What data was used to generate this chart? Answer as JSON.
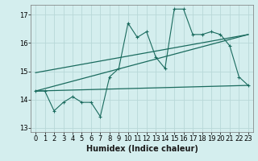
{
  "title": "",
  "xlabel": "Humidex (Indice chaleur)",
  "bg_color": "#d4eeee",
  "grid_color": "#b8d8d8",
  "line_color": "#1a6b5e",
  "xlim": [
    -0.5,
    23.5
  ],
  "ylim": [
    12.85,
    17.35
  ],
  "yticks": [
    13,
    14,
    15,
    16,
    17
  ],
  "xticks": [
    0,
    1,
    2,
    3,
    4,
    5,
    6,
    7,
    8,
    9,
    10,
    11,
    12,
    13,
    14,
    15,
    16,
    17,
    18,
    19,
    20,
    21,
    22,
    23
  ],
  "main_x": [
    0,
    1,
    2,
    3,
    4,
    5,
    6,
    7,
    8,
    9,
    10,
    11,
    12,
    13,
    14,
    15,
    16,
    17,
    18,
    19,
    20,
    21,
    22,
    23
  ],
  "main_y": [
    14.3,
    14.3,
    13.6,
    13.9,
    14.1,
    13.9,
    13.9,
    13.4,
    14.8,
    15.1,
    16.7,
    16.2,
    16.4,
    15.5,
    15.1,
    17.2,
    17.2,
    16.3,
    16.3,
    16.4,
    16.3,
    15.9,
    14.8,
    14.5
  ],
  "line1_x": [
    0,
    23
  ],
  "line1_y": [
    14.3,
    14.5
  ],
  "line2_x": [
    0,
    23
  ],
  "line2_y": [
    14.3,
    16.3
  ],
  "line3_x": [
    0,
    23
  ],
  "line3_y": [
    14.95,
    16.3
  ],
  "tick_fontsize": 6,
  "xlabel_fontsize": 7
}
